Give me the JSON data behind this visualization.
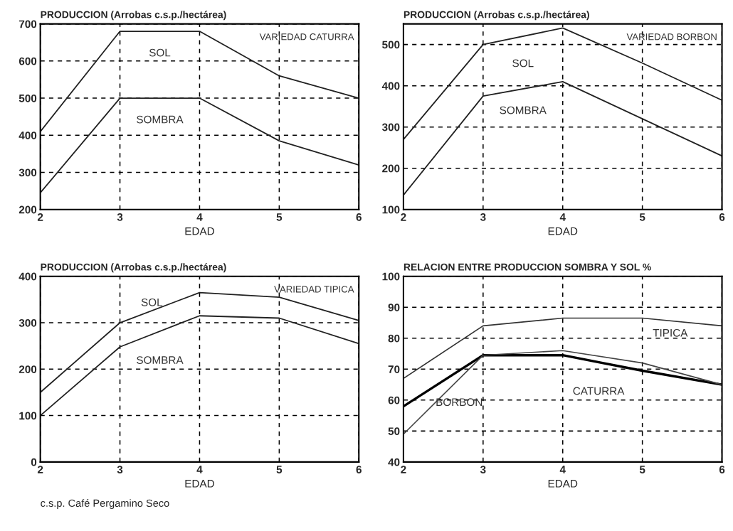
{
  "chart_data": [
    {
      "type": "line",
      "title": "PRODUCCION (Arrobas c.s.p./hectárea)",
      "xlabel": "EDAD",
      "x": [
        2,
        3,
        4,
        5,
        6
      ],
      "xlim": [
        2,
        6
      ],
      "xticks": [
        2,
        3,
        4,
        5,
        6
      ],
      "ylim": [
        200,
        700
      ],
      "yticks": [
        200,
        300,
        400,
        500,
        600,
        700
      ],
      "grid": true,
      "annotations": [
        "VARIEDAD CATURRA"
      ],
      "series": [
        {
          "name": "SOL",
          "color": "#222222",
          "values": [
            410,
            680,
            680,
            560,
            500
          ]
        },
        {
          "name": "SOMBRA",
          "color": "#222222",
          "values": [
            245,
            500,
            500,
            385,
            320
          ]
        }
      ]
    },
    {
      "type": "line",
      "title": "PRODUCCION (Arrobas c.s.p./hectárea)",
      "xlabel": "EDAD",
      "x": [
        2,
        3,
        4,
        5,
        6
      ],
      "xlim": [
        2,
        6
      ],
      "xticks": [
        2,
        3,
        4,
        5,
        6
      ],
      "ylim": [
        100,
        550
      ],
      "yticks": [
        100,
        200,
        300,
        400,
        500
      ],
      "grid": true,
      "annotations": [
        "VARIEDAD BORBON"
      ],
      "series": [
        {
          "name": "SOL",
          "color": "#222222",
          "values": [
            270,
            500,
            540,
            455,
            365
          ]
        },
        {
          "name": "SOMBRA",
          "color": "#222222",
          "values": [
            135,
            375,
            410,
            320,
            230
          ]
        }
      ]
    },
    {
      "type": "line",
      "title": "PRODUCCION (Arrobas c.s.p./hectárea)",
      "xlabel": "EDAD",
      "x": [
        2,
        3,
        4,
        5,
        6
      ],
      "xlim": [
        2,
        6
      ],
      "xticks": [
        2,
        3,
        4,
        5,
        6
      ],
      "ylim": [
        0,
        400
      ],
      "yticks": [
        0,
        100,
        200,
        300,
        400
      ],
      "grid": true,
      "annotations": [
        "VARIEDAD TIPICA",
        "c.s.p. Café Pergamino Seco"
      ],
      "series": [
        {
          "name": "SOL",
          "color": "#222222",
          "values": [
            150,
            300,
            365,
            355,
            305
          ]
        },
        {
          "name": "SOMBRA",
          "color": "#222222",
          "values": [
            100,
            248,
            315,
            310,
            255
          ]
        }
      ]
    },
    {
      "type": "line",
      "title": "RELACION ENTRE PRODUCCION SOMBRA Y SOL %",
      "xlabel": "EDAD",
      "x": [
        2,
        3,
        4,
        5,
        6
      ],
      "xlim": [
        2,
        6
      ],
      "xticks": [
        2,
        3,
        4,
        5,
        6
      ],
      "ylim": [
        40,
        100
      ],
      "yticks": [
        40,
        50,
        60,
        70,
        80,
        90,
        100
      ],
      "grid": true,
      "series": [
        {
          "name": "TIPICA",
          "color": "#333333",
          "values": [
            67,
            84,
            86.5,
            86.5,
            84
          ]
        },
        {
          "name": "CATURRA",
          "color": "#000000",
          "values": [
            58,
            74.5,
            74.5,
            69.5,
            65
          ]
        },
        {
          "name": "BORBON",
          "color": "#444444",
          "values": [
            49,
            74.5,
            76,
            72,
            65
          ]
        }
      ]
    }
  ]
}
